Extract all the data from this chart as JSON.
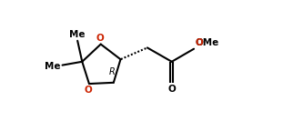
{
  "bg_color": "#ffffff",
  "line_color": "#000000",
  "text_color": "#000000",
  "o_ring_color": "#cc2200",
  "ome_o_color": "#cc2200",
  "figsize": [
    3.11,
    1.33
  ],
  "dpi": 100,
  "lw": 1.5,
  "font_size": 7.5,
  "font_family": "DejaVu Sans",
  "xlim": [
    0.0,
    9.5
  ],
  "ylim": [
    0.0,
    5.2
  ]
}
